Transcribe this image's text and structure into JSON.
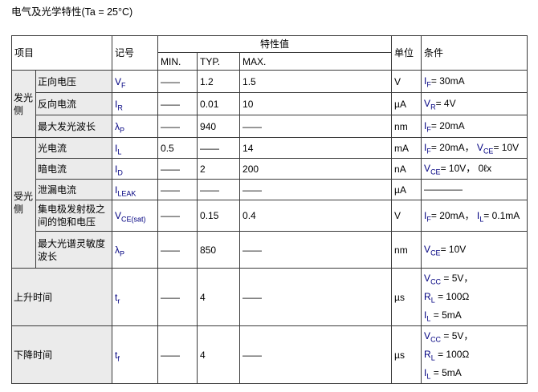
{
  "page_title": "电气及光学特性(Ta = 25°C)",
  "colors": {
    "symbol": "#000080",
    "shade": "#ebebeb",
    "border": "#3a3a3a",
    "text": "#000000",
    "background": "#ffffff"
  },
  "table": {
    "headers": {
      "item": "项目",
      "symbol": "记号",
      "value": "特性值",
      "min": "MIN.",
      "typ": "TYP.",
      "max": "MAX.",
      "unit": "单位",
      "condition": "条件"
    },
    "rows": [
      {
        "group": {
          "label": "发光侧",
          "rows": 3
        },
        "item": "正向电压",
        "symbol": "V_{F}",
        "min": "——",
        "typ": "1.2",
        "max": "1.5",
        "unit": "V",
        "condition": [
          "I_{F}= 30mA"
        ]
      },
      {
        "item": "反向电流",
        "symbol": "I_{R}",
        "min": "——",
        "typ": "0.01",
        "max": "10",
        "unit": "µA",
        "condition": [
          "V_{R}= 4V"
        ]
      },
      {
        "item": "最大发光波长",
        "symbol": "λ_{P}",
        "min": "——",
        "typ": "940",
        "max": "——",
        "unit": "nm",
        "condition": [
          "I_{F}= 20mA"
        ]
      },
      {
        "group": {
          "label": "受光侧",
          "rows": 5
        },
        "item": "光电流",
        "symbol": "I_{L}",
        "min": "0.5",
        "typ": "——",
        "max": "14",
        "unit": "mA",
        "condition": [
          "I_{F}= 20mA， V_{CE}= 10V"
        ]
      },
      {
        "item": "暗电流",
        "symbol": "I_{D}",
        "min": "——",
        "typ": "2",
        "max": "200",
        "unit": "nA",
        "condition": [
          "V_{CE}= 10V， 0ℓx"
        ]
      },
      {
        "item": "泄漏电流",
        "symbol": "I_{LEAK}",
        "min": "——",
        "typ": "——",
        "max": "——",
        "unit": "µA",
        "condition": [
          "————"
        ]
      },
      {
        "item": "集电极发射极之间的饱和电压",
        "symbol": "V_{CE(sat)}",
        "min": "——",
        "typ": "0.15",
        "max": "0.4",
        "unit": "V",
        "condition": [
          "I_{F}= 20mA， I_{L}= 0.1mA"
        ]
      },
      {
        "item": "最大光谱灵敏度波长",
        "symbol": "λ_{P}",
        "min": "——",
        "typ": "850",
        "max": "——",
        "unit": "nm",
        "condition": [
          "V_{CE}= 10V"
        ]
      },
      {
        "item": "上升时间",
        "item_colspan": 2,
        "symbol": "t_{r}",
        "min": "——",
        "typ": "4",
        "max": "——",
        "unit": "µs",
        "condition": [
          "V_{CC} = 5V，",
          "R_{L} = 100Ω",
          "I_{L} = 5mA"
        ]
      },
      {
        "item": "下降时间",
        "item_colspan": 2,
        "symbol": "t_{f}",
        "min": "——",
        "typ": "4",
        "max": "——",
        "unit": "µs",
        "condition": [
          "V_{CC} = 5V，",
          "R_{L} = 100Ω",
          "I_{L} = 5mA"
        ]
      }
    ]
  }
}
